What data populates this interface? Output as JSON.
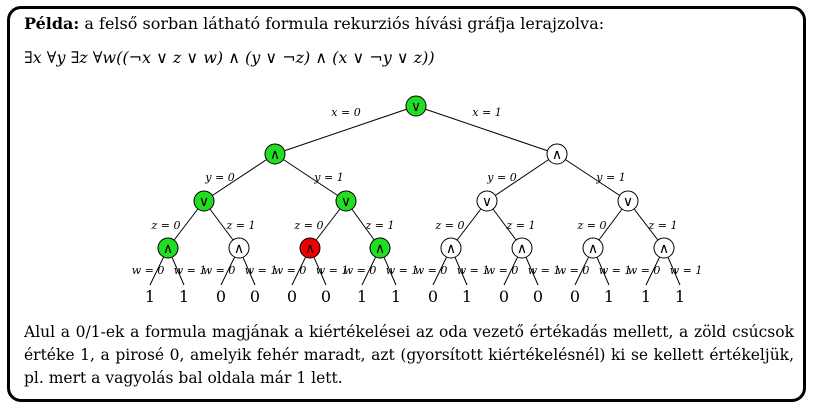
{
  "intro": {
    "bold": "Példa:",
    "text": " a felső sorban látható formula rekurziós hívási gráfja lerajzolva:"
  },
  "formula": "∃x ∀y ∃z ∀w((¬x ∨ z ∨ w)  ∧  (y ∨ ¬z)  ∧  (x ∨ ¬y ∨ z))",
  "caption": "Alul a 0/1-ek a formula magjának a kiértékelései az oda vezető értékadás mellett, a zöld csúcsok értéke 1, a pirosé 0, amelyik fehér maradt, azt (gyorsított kiértékelésnél) ki se kellett értékeljük, pl. mert a vagyolás bal oldala már 1 lett.",
  "colors": {
    "green": "#22dd22",
    "red": "#ee0000",
    "white": "#ffffff"
  },
  "tree": {
    "root": {
      "op": "∨",
      "state": "green"
    },
    "x_labels": [
      "x = 0",
      "x = 1"
    ],
    "level1": [
      {
        "op": "∧",
        "state": "green"
      },
      {
        "op": "∧",
        "state": "white"
      }
    ],
    "y_labels": [
      "y = 0",
      "y = 1",
      "y = 0",
      "y = 1"
    ],
    "level2": [
      {
        "op": "∨",
        "state": "green"
      },
      {
        "op": "∨",
        "state": "green"
      },
      {
        "op": "∨",
        "state": "white"
      },
      {
        "op": "∨",
        "state": "white"
      }
    ],
    "z_labels": [
      "z = 0",
      "z = 1",
      "z = 0",
      "z = 1",
      "z = 0",
      "z = 1",
      "z = 0",
      "z = 1"
    ],
    "level3": [
      {
        "op": "∧",
        "state": "green"
      },
      {
        "op": "∧",
        "state": "white"
      },
      {
        "op": "∧",
        "state": "red"
      },
      {
        "op": "∧",
        "state": "green"
      },
      {
        "op": "∧",
        "state": "white"
      },
      {
        "op": "∧",
        "state": "white"
      },
      {
        "op": "∧",
        "state": "white"
      },
      {
        "op": "∧",
        "state": "white"
      }
    ],
    "w_labels": [
      "w = 0",
      "w = 1",
      "w = 0",
      "w = 1",
      "w = 0",
      "w = 1",
      "w = 0",
      "w = 1",
      "w = 0",
      "w = 1",
      "w = 0",
      "w = 1",
      "w = 0",
      "w = 1",
      "w = 0",
      "w = 1"
    ],
    "leaves": [
      "1",
      "1",
      "0",
      "0",
      "0",
      "0",
      "1",
      "1",
      "0",
      "1",
      "0",
      "0",
      "0",
      "1",
      "1",
      "1"
    ]
  }
}
